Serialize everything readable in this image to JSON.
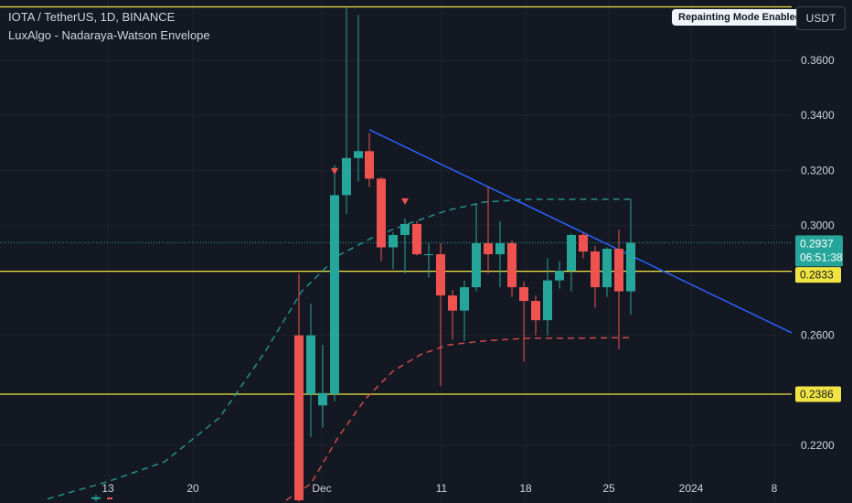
{
  "legend": {
    "symbol": "IOTA / TetherUS, 1D, BINANCE",
    "indicator": "LuxAlgo - Nadaraya-Watson Envelope"
  },
  "buttons": {
    "repainting": "Repainting Mode Enabled",
    "currency": "USDT"
  },
  "colors": {
    "background": "#141823",
    "up": "#26a69a",
    "down": "#ef5350",
    "trendline": "#2962ff",
    "level": "#f0e442",
    "axis_text": "#d1d4dc"
  },
  "chart_data": {
    "type": "candlestick",
    "x_axis": {
      "ticks": [
        "13",
        "20",
        "Dec",
        "11",
        "18",
        "25",
        "2024",
        "8"
      ]
    },
    "y_axis": {
      "ticks": [
        "0.3600",
        "0.3400",
        "0.3200",
        "0.3000",
        "0.2600",
        "0.2200"
      ],
      "range": [
        0.199,
        0.381
      ]
    },
    "price_badges": {
      "last_price": "0.2937",
      "countdown": "06:51:38",
      "level_mid": "0.2833",
      "level_low": "0.2386"
    },
    "horizontal_levels": [
      0.3795,
      0.2833,
      0.2386
    ],
    "trendline": {
      "from": {
        "x": 404,
        "y": 0.3348
      },
      "to": {
        "x": 866,
        "y": 0.2609
      }
    },
    "candles": [
      {
        "x": 105,
        "o": 0.2005,
        "h": 0.2021,
        "l": 0.1995,
        "c": 0.2011
      },
      {
        "x": 327,
        "o": 0.26,
        "h": 0.2825,
        "l": 0.1995,
        "c": 0.2
      },
      {
        "x": 340,
        "o": 0.2386,
        "h": 0.2715,
        "l": 0.223,
        "c": 0.26
      },
      {
        "x": 353,
        "o": 0.2345,
        "h": 0.2565,
        "l": 0.2265,
        "c": 0.239
      },
      {
        "x": 366,
        "o": 0.2386,
        "h": 0.322,
        "l": 0.236,
        "c": 0.311
      },
      {
        "x": 379,
        "o": 0.311,
        "h": 0.3795,
        "l": 0.304,
        "c": 0.3245
      },
      {
        "x": 392,
        "o": 0.3245,
        "h": 0.3765,
        "l": 0.316,
        "c": 0.327
      },
      {
        "x": 404,
        "o": 0.327,
        "h": 0.3335,
        "l": 0.314,
        "c": 0.317
      },
      {
        "x": 417,
        "o": 0.317,
        "h": 0.3175,
        "l": 0.287,
        "c": 0.292
      },
      {
        "x": 430,
        "o": 0.292,
        "h": 0.2975,
        "l": 0.284,
        "c": 0.2965
      },
      {
        "x": 443,
        "o": 0.2965,
        "h": 0.3025,
        "l": 0.2825,
        "c": 0.3005
      },
      {
        "x": 456,
        "o": 0.3005,
        "h": 0.3015,
        "l": 0.289,
        "c": 0.2895
      },
      {
        "x": 469,
        "o": 0.2895,
        "h": 0.2935,
        "l": 0.281,
        "c": 0.2895
      },
      {
        "x": 482,
        "o": 0.2895,
        "h": 0.2935,
        "l": 0.2415,
        "c": 0.2745
      },
      {
        "x": 495,
        "o": 0.2745,
        "h": 0.2765,
        "l": 0.2585,
        "c": 0.269
      },
      {
        "x": 508,
        "o": 0.269,
        "h": 0.28,
        "l": 0.258,
        "c": 0.2775
      },
      {
        "x": 521,
        "o": 0.2775,
        "h": 0.308,
        "l": 0.276,
        "c": 0.2935
      },
      {
        "x": 534,
        "o": 0.2935,
        "h": 0.314,
        "l": 0.2825,
        "c": 0.2895
      },
      {
        "x": 547,
        "o": 0.2895,
        "h": 0.3015,
        "l": 0.2775,
        "c": 0.2935
      },
      {
        "x": 560,
        "o": 0.2935,
        "h": 0.2945,
        "l": 0.274,
        "c": 0.2775
      },
      {
        "x": 573,
        "o": 0.2775,
        "h": 0.2795,
        "l": 0.2505,
        "c": 0.2725
      },
      {
        "x": 586,
        "o": 0.2725,
        "h": 0.2745,
        "l": 0.26,
        "c": 0.2655
      },
      {
        "x": 599,
        "o": 0.2655,
        "h": 0.288,
        "l": 0.26,
        "c": 0.28
      },
      {
        "x": 612,
        "o": 0.28,
        "h": 0.287,
        "l": 0.277,
        "c": 0.2835
      },
      {
        "x": 625,
        "o": 0.2835,
        "h": 0.297,
        "l": 0.276,
        "c": 0.2965
      },
      {
        "x": 638,
        "o": 0.2965,
        "h": 0.2975,
        "l": 0.288,
        "c": 0.2905
      },
      {
        "x": 651,
        "o": 0.2905,
        "h": 0.2925,
        "l": 0.27,
        "c": 0.2775
      },
      {
        "x": 664,
        "o": 0.2775,
        "h": 0.292,
        "l": 0.274,
        "c": 0.2915
      },
      {
        "x": 677,
        "o": 0.2915,
        "h": 0.2985,
        "l": 0.255,
        "c": 0.276
      },
      {
        "x": 690,
        "o": 0.276,
        "h": 0.3095,
        "l": 0.2675,
        "c": 0.2937
      }
    ],
    "envelope_upper": [
      [
        52,
        0.2005
      ],
      [
        120,
        0.207
      ],
      [
        180,
        0.214
      ],
      [
        240,
        0.23
      ],
      [
        290,
        0.254
      ],
      [
        330,
        0.276
      ],
      [
        370,
        0.289
      ],
      [
        410,
        0.296
      ],
      [
        450,
        0.301
      ],
      [
        490,
        0.3055
      ],
      [
        530,
        0.3085
      ],
      [
        580,
        0.3095
      ],
      [
        640,
        0.3095
      ],
      [
        690,
        0.3095
      ]
    ],
    "envelope_lower": [
      [
        313,
        0.2
      ],
      [
        340,
        0.206
      ],
      [
        370,
        0.223
      ],
      [
        400,
        0.237
      ],
      [
        430,
        0.247
      ],
      [
        460,
        0.253
      ],
      [
        490,
        0.2565
      ],
      [
        530,
        0.258
      ],
      [
        580,
        0.259
      ],
      [
        640,
        0.259
      ],
      [
        690,
        0.2592
      ]
    ],
    "signals": [
      {
        "type": "sell",
        "x": 366,
        "y": 0.3195
      },
      {
        "type": "sell",
        "x": 443,
        "y": 0.3085
      },
      {
        "type": "buy",
        "x": 105,
        "y": 0.199
      },
      {
        "type": "buy",
        "x": 120,
        "y": 0.199
      }
    ]
  }
}
